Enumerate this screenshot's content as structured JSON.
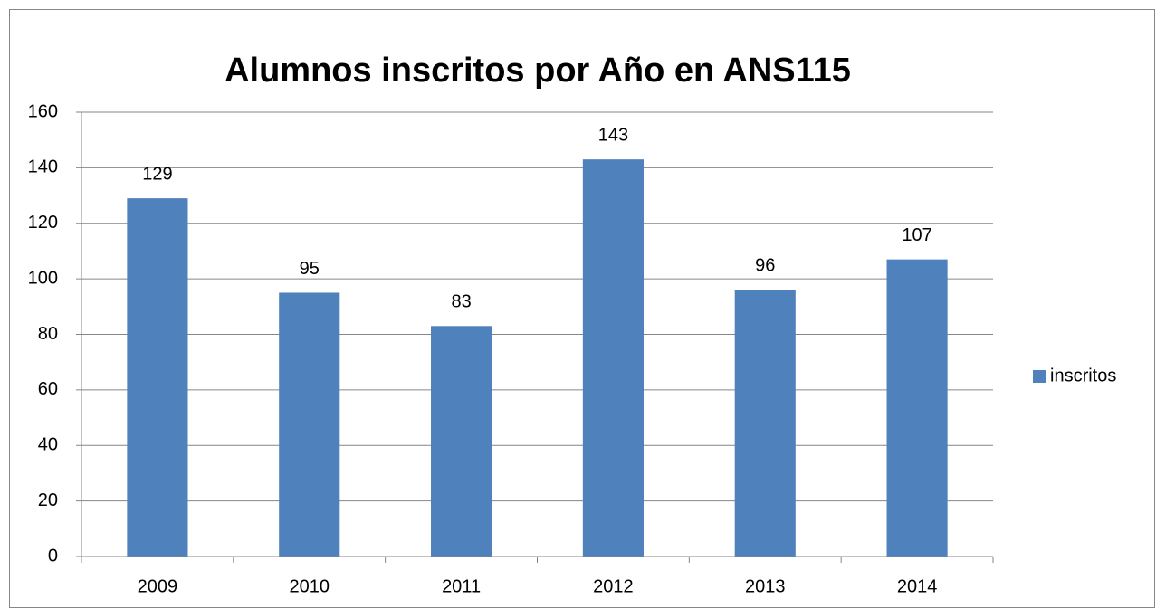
{
  "chart_data": {
    "type": "bar",
    "title": "Alumnos inscritos por Año en ANS115",
    "categories": [
      "2009",
      "2010",
      "2011",
      "2012",
      "2013",
      "2014"
    ],
    "series": [
      {
        "name": "inscritos",
        "color": "#4f81bd",
        "values": [
          129,
          95,
          83,
          143,
          96,
          107
        ]
      }
    ],
    "ylim": [
      0,
      160
    ],
    "yticks": [
      0,
      20,
      40,
      60,
      80,
      100,
      120,
      140,
      160
    ],
    "grid": true,
    "legend": "right"
  }
}
